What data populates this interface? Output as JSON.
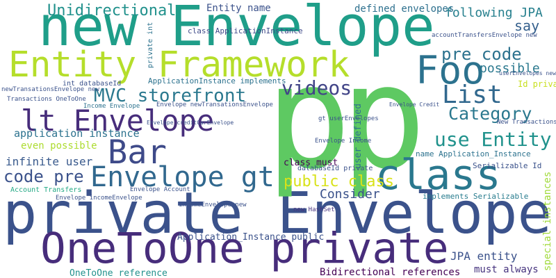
{
  "words": [
    "new Envelope",
    "private Envelope",
    "Entity Framework",
    "p",
    "p",
    "OneToOne private",
    "lt Envelope",
    "Bar",
    "Envelope gt",
    "class",
    "Foo",
    "List",
    "Category",
    "use Entity",
    "pre code",
    "possible",
    "say",
    "following JPA",
    "defined envelopes",
    "Unidirectional",
    "Entity name",
    "MVC storefront",
    "videos",
    "code pre",
    "infinite user",
    "application instance",
    "even possible",
    "public class",
    "Consider",
    "class must",
    "JPA entity",
    "Bidirectional references",
    "must always",
    "special instances",
    "OneToOne reference",
    "Application_Instance public",
    "ApplicationInstance implements",
    "class ApplicationInstance",
    "Envelope newTransationsEnvelope",
    "Serializable Id",
    "name Application_Instance",
    "implements Serializable",
    "Id private",
    "user defined",
    "Envelope Income",
    "Envelope Account",
    "Account Transfers",
    "int databaseId",
    "Income Envelope",
    "gt userEnvelopes",
    "databaseId private",
    "new HashSet",
    "Transactions OneToOne",
    "newTransationsEnvelope new",
    "private int",
    "Envelope creditCarEnvelope",
    "Envelope incomeEnvelope",
    "incomeEnvelope new",
    "Envelope Credit",
    "accountTransfersEnvelope new",
    "New Transactions",
    "userEnvelopes new"
  ]
}
